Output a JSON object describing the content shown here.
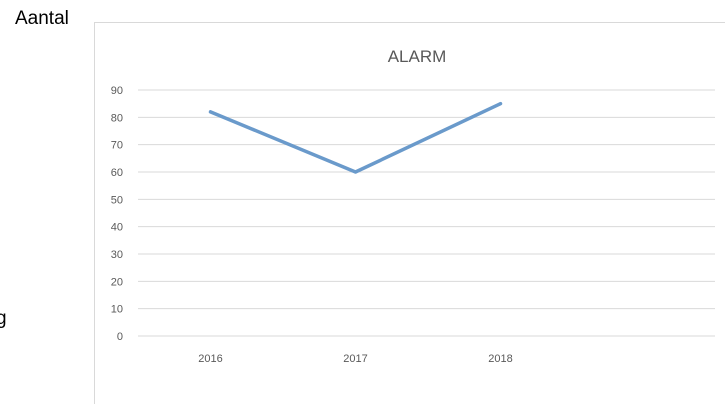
{
  "outside_labels": {
    "left_top": "Aantal",
    "left_cut": "g"
  },
  "colors": {
    "line": "#6a9acb",
    "grid": "#d9d9d9",
    "axis_text": "#595959"
  },
  "chart_data": {
    "type": "line",
    "title": "ALARM",
    "categories": [
      "2016",
      "2017",
      "2018"
    ],
    "series": [
      {
        "values": [
          82,
          60,
          85
        ]
      }
    ],
    "yticks": [
      "0",
      "10",
      "20",
      "30",
      "40",
      "50",
      "60",
      "70",
      "80",
      "90"
    ],
    "ylim": [
      0,
      90
    ],
    "grid": true,
    "legend": "none"
  }
}
